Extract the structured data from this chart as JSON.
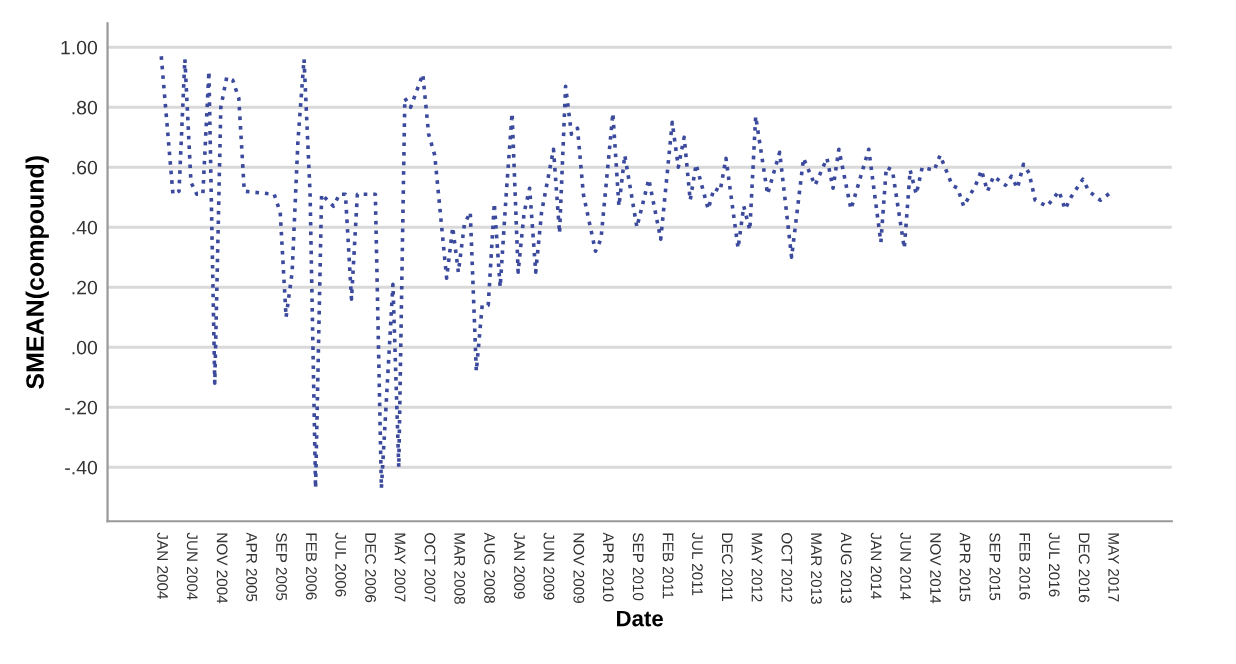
{
  "chart_data": {
    "type": "line",
    "xlabel": "Date",
    "ylabel": "SMEAN(compound)",
    "x": [
      "2004-01",
      "2004-03",
      "2004-04",
      "2004-05",
      "2004-06",
      "2004-07",
      "2004-08",
      "2004-09",
      "2004-10",
      "2004-11",
      "2004-12",
      "2005-01",
      "2005-02",
      "2005-03",
      "2005-08",
      "2005-09",
      "2005-10",
      "2005-11",
      "2005-12",
      "2006-01",
      "2006-02",
      "2006-03",
      "2006-04",
      "2006-05",
      "2006-06",
      "2006-07",
      "2006-08",
      "2006-09",
      "2006-10",
      "2007-01",
      "2007-02",
      "2007-04",
      "2007-05",
      "2007-06",
      "2007-07",
      "2007-09",
      "2007-10",
      "2007-11",
      "2008-01",
      "2008-02",
      "2008-03",
      "2008-04",
      "2008-05",
      "2008-06",
      "2008-07",
      "2008-08",
      "2008-09",
      "2008-10",
      "2008-11",
      "2008-12",
      "2009-01",
      "2009-02",
      "2009-03",
      "2009-04",
      "2009-05",
      "2009-07",
      "2009-08",
      "2009-09",
      "2009-10",
      "2009-11",
      "2009-12",
      "2010-02",
      "2010-03",
      "2010-05",
      "2010-06",
      "2010-07",
      "2010-09",
      "2010-11",
      "2011-01",
      "2011-03",
      "2011-04",
      "2011-05",
      "2011-06",
      "2011-07",
      "2011-09",
      "2011-10",
      "2011-11",
      "2011-12",
      "2012-02",
      "2012-03",
      "2012-04",
      "2012-05",
      "2012-07",
      "2012-09",
      "2012-11",
      "2013-01",
      "2013-03",
      "2013-05",
      "2013-06",
      "2013-07",
      "2013-09",
      "2013-12",
      "2014-02",
      "2014-03",
      "2014-04",
      "2014-06",
      "2014-07",
      "2014-08",
      "2014-09",
      "2014-11",
      "2014-12",
      "2015-02",
      "2015-03",
      "2015-04",
      "2015-06",
      "2015-07",
      "2015-08",
      "2015-09",
      "2015-11",
      "2015-12",
      "2016-01",
      "2016-02",
      "2016-03",
      "2016-04",
      "2016-06",
      "2016-08",
      "2016-09",
      "2016-10",
      "2016-12",
      "2017-01",
      "2017-03",
      "2017-05"
    ],
    "series": [
      {
        "color": "#3b4a9c",
        "values": [
          0.97,
          0.51,
          0.52,
          0.96,
          0.55,
          0.51,
          0.51,
          0.92,
          -0.12,
          0.8,
          0.9,
          0.89,
          0.83,
          0.52,
          0.51,
          0.45,
          0.1,
          0.25,
          0.69,
          0.96,
          0.51,
          -0.47,
          0.51,
          0.49,
          0.47,
          0.51,
          0.51,
          0.16,
          0.51,
          0.51,
          -0.47,
          0.21,
          -0.4,
          0.83,
          0.8,
          0.91,
          0.71,
          0.64,
          0.23,
          0.4,
          0.25,
          0.41,
          0.45,
          -0.08,
          0.14,
          0.14,
          0.48,
          0.2,
          0.51,
          0.78,
          0.25,
          0.45,
          0.53,
          0.25,
          0.45,
          0.66,
          0.38,
          0.87,
          0.71,
          0.73,
          0.51,
          0.32,
          0.36,
          0.78,
          0.47,
          0.64,
          0.4,
          0.56,
          0.36,
          0.75,
          0.6,
          0.7,
          0.49,
          0.61,
          0.46,
          0.53,
          0.52,
          0.63,
          0.33,
          0.47,
          0.39,
          0.77,
          0.51,
          0.65,
          0.3,
          0.63,
          0.54,
          0.63,
          0.53,
          0.66,
          0.46,
          0.66,
          0.35,
          0.6,
          0.59,
          0.33,
          0.59,
          0.51,
          0.6,
          0.59,
          0.64,
          0.54,
          0.53,
          0.47,
          0.54,
          0.59,
          0.52,
          0.57,
          0.54,
          0.57,
          0.53,
          0.61,
          0.58,
          0.49,
          0.47,
          0.52,
          0.46,
          0.5,
          0.56,
          0.52,
          0.49,
          0.52
        ]
      }
    ],
    "line_style": "dotted",
    "marker": "none",
    "grid": "y",
    "xlim": [
      "2003-04",
      "2018-03"
    ],
    "ylim": [
      -0.58,
      1.08
    ],
    "yticks": [
      {
        "value": -0.4,
        "label": "-.40"
      },
      {
        "value": -0.2,
        "label": "-.20"
      },
      {
        "value": 0,
        "label": ".00"
      },
      {
        "value": 0.2,
        "label": ".20"
      },
      {
        "value": 0.4,
        "label": ".40"
      },
      {
        "value": 0.6,
        "label": ".60"
      },
      {
        "value": 0.8,
        "label": ".80"
      },
      {
        "value": 1,
        "label": "1.00"
      }
    ],
    "xticks": [
      {
        "value": "2004-01",
        "label": "JAN 2004"
      },
      {
        "value": "2004-06",
        "label": "JUN 2004"
      },
      {
        "value": "2004-11",
        "label": "NOV 2004"
      },
      {
        "value": "2005-04",
        "label": "APR 2005"
      },
      {
        "value": "2005-09",
        "label": "SEP 2005"
      },
      {
        "value": "2006-02",
        "label": "FEB 2006"
      },
      {
        "value": "2006-07",
        "label": "JUL 2006"
      },
      {
        "value": "2006-12",
        "label": "DEC 2006"
      },
      {
        "value": "2007-05",
        "label": "MAY 2007"
      },
      {
        "value": "2007-10",
        "label": "OCT 2007"
      },
      {
        "value": "2008-03",
        "label": "MAR 2008"
      },
      {
        "value": "2008-08",
        "label": "AUG 2008"
      },
      {
        "value": "2009-01",
        "label": "JAN 2009"
      },
      {
        "value": "2009-06",
        "label": "JUN 2009"
      },
      {
        "value": "2009-11",
        "label": "NOV 2009"
      },
      {
        "value": "2010-04",
        "label": "APR 2010"
      },
      {
        "value": "2010-09",
        "label": "SEP 2010"
      },
      {
        "value": "2011-02",
        "label": "FEB 2011"
      },
      {
        "value": "2011-07",
        "label": "JUL 2011"
      },
      {
        "value": "2011-12",
        "label": "DEC 2011"
      },
      {
        "value": "2012-05",
        "label": "MAY 2012"
      },
      {
        "value": "2012-10",
        "label": "OCT 2012"
      },
      {
        "value": "2013-03",
        "label": "MAR 2013"
      },
      {
        "value": "2013-08",
        "label": "AUG 2013"
      },
      {
        "value": "2014-01",
        "label": "JAN 2014"
      },
      {
        "value": "2014-06",
        "label": "JUN 2014"
      },
      {
        "value": "2014-11",
        "label": "NOV 2014"
      },
      {
        "value": "2015-04",
        "label": "APR 2015"
      },
      {
        "value": "2015-09",
        "label": "SEP 2015"
      },
      {
        "value": "2016-02",
        "label": "FEB 2016"
      },
      {
        "value": "2016-07",
        "label": "JUL 2016"
      },
      {
        "value": "2016-12",
        "label": "DEC 2016"
      },
      {
        "value": "2017-05",
        "label": "MAY 2017"
      }
    ]
  }
}
